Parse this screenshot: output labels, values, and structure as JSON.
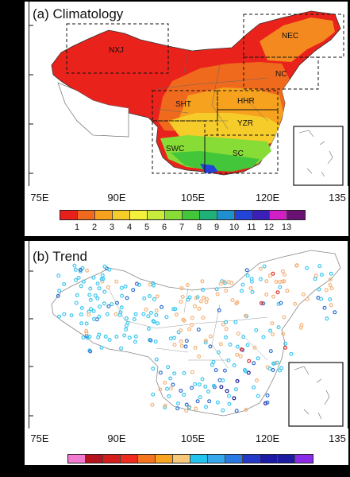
{
  "panel_a": {
    "title": "(a) Climatology",
    "regions": [
      "NXJ",
      "NEC",
      "NC",
      "SHT",
      "HHR",
      "YZR",
      "SWC",
      "SC"
    ],
    "lon_labels": [
      "75E",
      "90E",
      "105E",
      "120E",
      "135"
    ],
    "colorbar": {
      "colors": [
        "#e8201c",
        "#f06a1e",
        "#f7a21f",
        "#f6cc2a",
        "#f4f13a",
        "#c7ec3c",
        "#87dc36",
        "#43c63a",
        "#1eb27a",
        "#1f8fd0",
        "#2244d8",
        "#3a1fb8",
        "#d11fc5",
        "#6a1274"
      ],
      "labels": [
        "1",
        "2",
        "3",
        "4",
        "5",
        "6",
        "7",
        "8",
        "9",
        "10",
        "11",
        "12",
        "13"
      ]
    }
  },
  "panel_b": {
    "title": "(b) Trend",
    "lon_labels": [
      "75E",
      "90E",
      "105E",
      "120E",
      "135"
    ],
    "colorbar": {
      "colors": [
        "#f27ad0",
        "#b5131b",
        "#d41d1d",
        "#ee2b1f",
        "#f5741e",
        "#f8a421",
        "#f7c77a",
        "#22c4ee",
        "#35a9ec",
        "#2a7ae4",
        "#2438ca",
        "#1a1aa4",
        "#1b1aa0",
        "#8a2be6"
      ]
    },
    "station_colors": {
      "orange": "#f4b27a",
      "cyan": "#3cc6ee",
      "blue": "#2f6fd0",
      "red": "#e0302a",
      "navy": "#1a1a9a"
    }
  }
}
